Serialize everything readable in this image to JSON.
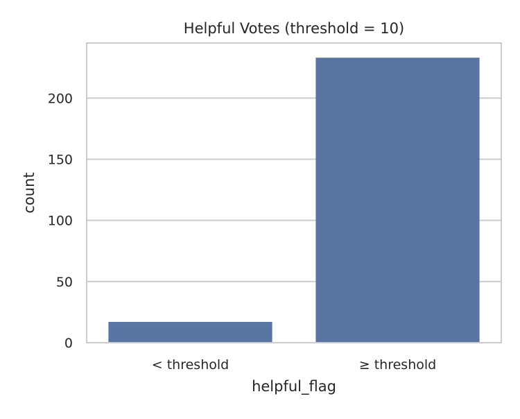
{
  "chart_data": {
    "type": "bar",
    "title": "Helpful Votes (threshold = 10)",
    "xlabel": "helpful_flag",
    "ylabel": "count",
    "categories": [
      "< threshold",
      "≥ threshold"
    ],
    "values": [
      17,
      233
    ],
    "ylim": [
      0,
      245
    ],
    "yticks": [
      0,
      50,
      100,
      150,
      200
    ],
    "grid": true,
    "bar_color": "#5975a4",
    "grid_color": "#cccccc",
    "axis_color": "#cccccc"
  }
}
